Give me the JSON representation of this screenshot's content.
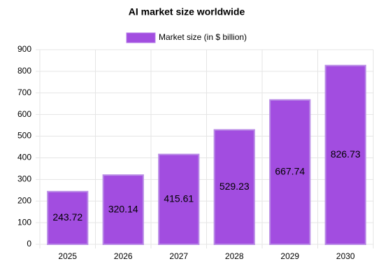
{
  "chart_data": {
    "type": "bar",
    "title": "AI market size worldwide",
    "categories": [
      "2025",
      "2026",
      "2027",
      "2028",
      "2029",
      "2030"
    ],
    "series": [
      {
        "name": "Market size (in $ billion)",
        "color": "#a24de0",
        "values": [
          243.72,
          320.14,
          415.61,
          529.23,
          667.74,
          826.73
        ]
      }
    ],
    "ylim": [
      0,
      900
    ],
    "yticks": [
      0,
      100,
      200,
      300,
      400,
      500,
      600,
      700,
      800,
      900
    ],
    "grid": true,
    "legend": "top",
    "data_labels": true
  }
}
